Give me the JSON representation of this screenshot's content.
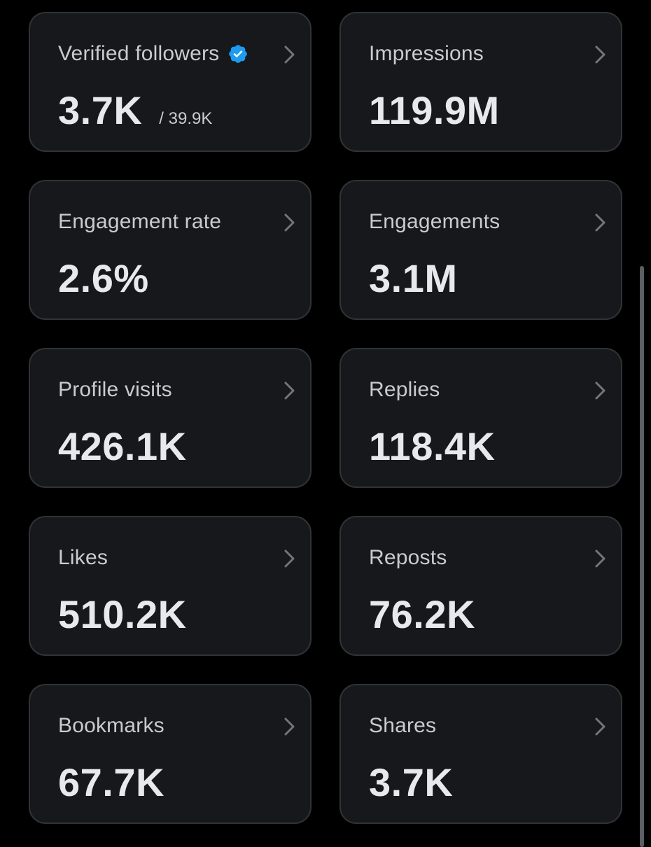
{
  "cards": [
    {
      "label": "Verified followers",
      "value": "3.7K",
      "sub": "/ 39.9K",
      "verified": true
    },
    {
      "label": "Impressions",
      "value": "119.9M"
    },
    {
      "label": "Engagement rate",
      "value": "2.6%"
    },
    {
      "label": "Engagements",
      "value": "3.1M"
    },
    {
      "label": "Profile visits",
      "value": "426.1K"
    },
    {
      "label": "Replies",
      "value": "118.4K"
    },
    {
      "label": "Likes",
      "value": "510.2K"
    },
    {
      "label": "Reposts",
      "value": "76.2K"
    },
    {
      "label": "Bookmarks",
      "value": "67.7K"
    },
    {
      "label": "Shares",
      "value": "3.7K"
    }
  ],
  "icons": {
    "chevron": "chevron-right-icon",
    "verified": "verified-badge-icon"
  },
  "colors": {
    "background": "#000000",
    "card": "#16181c",
    "border": "#2f3336",
    "label": "#c8ccd1",
    "value": "#e7e9ea",
    "verified": "#1d9bf0"
  }
}
